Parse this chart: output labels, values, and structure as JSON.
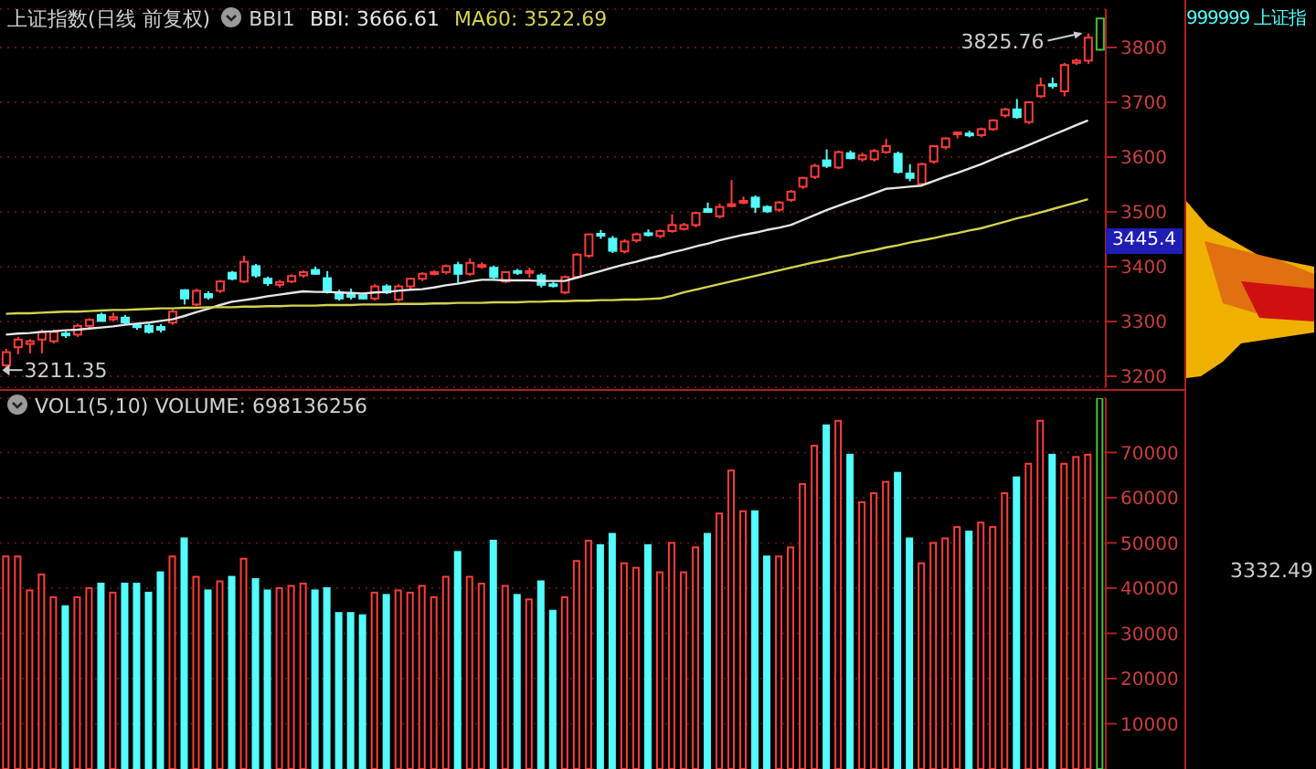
{
  "chart_data": [
    {
      "type": "candlestick",
      "title": "上证指数(日线 前复权)",
      "subtitle": "BBI1",
      "legend": "top left",
      "grid": "y",
      "categories": [
        null,
        null,
        null,
        null,
        null,
        null,
        null,
        null,
        null,
        null,
        null,
        null,
        null,
        null,
        null,
        null,
        null,
        null,
        null,
        null,
        null,
        null,
        null,
        null,
        null,
        null,
        null,
        null,
        null,
        null,
        null,
        null,
        null,
        null,
        null,
        null,
        null,
        null,
        null,
        null,
        null,
        null,
        null,
        null,
        null,
        null,
        null,
        null,
        null,
        null,
        null,
        null,
        null,
        null,
        null,
        null,
        null,
        null,
        null,
        null,
        null,
        null,
        null,
        null,
        null,
        null,
        null,
        null,
        null,
        null,
        null,
        null,
        null,
        null,
        null,
        null,
        null,
        null,
        null,
        null,
        null,
        null,
        null,
        null,
        null,
        null,
        null,
        null,
        null,
        null,
        null,
        null,
        null
      ],
      "ohlc": [
        [
          3220,
          3250,
          3211.35,
          3244
        ],
        [
          3253,
          3272,
          3240,
          3267
        ],
        [
          3259,
          3268,
          3242,
          3264
        ],
        [
          3267,
          3285,
          3242,
          3281
        ],
        [
          3264,
          3285,
          3260,
          3281
        ],
        [
          3278,
          3282,
          3270,
          3275
        ],
        [
          3276,
          3296,
          3272,
          3292
        ],
        [
          3292,
          3306,
          3288,
          3303
        ],
        [
          3312,
          3316,
          3300,
          3301
        ],
        [
          3304,
          3316,
          3300,
          3308
        ],
        [
          3307,
          3312,
          3294,
          3298
        ],
        [
          3293,
          3296,
          3285,
          3290
        ],
        [
          3292,
          3296,
          3278,
          3281
        ],
        [
          3290,
          3295,
          3280,
          3285
        ],
        [
          3298,
          3322,
          3294,
          3318
        ],
        [
          3357,
          3359,
          3331,
          3342
        ],
        [
          3331,
          3360,
          3328,
          3356
        ],
        [
          3350,
          3355,
          3340,
          3344
        ],
        [
          3356,
          3376,
          3352,
          3373
        ],
        [
          3389,
          3392,
          3375,
          3378
        ],
        [
          3373,
          3420,
          3370,
          3409
        ],
        [
          3401,
          3405,
          3380,
          3384
        ],
        [
          3378,
          3382,
          3365,
          3370
        ],
        [
          3367,
          3376,
          3362,
          3372
        ],
        [
          3373,
          3386,
          3370,
          3383
        ],
        [
          3384,
          3393,
          3380,
          3390
        ],
        [
          3394,
          3400,
          3385,
          3387
        ],
        [
          3379,
          3392,
          3351,
          3354
        ],
        [
          3353,
          3358,
          3338,
          3342
        ],
        [
          3351,
          3360,
          3340,
          3345
        ],
        [
          3348,
          3352,
          3340,
          3342
        ],
        [
          3342,
          3368,
          3338,
          3364
        ],
        [
          3364,
          3368,
          3350,
          3353
        ],
        [
          3340,
          3368,
          3336,
          3364
        ],
        [
          3364,
          3380,
          3360,
          3378
        ],
        [
          3378,
          3390,
          3374,
          3387
        ],
        [
          3388,
          3394,
          3384,
          3390
        ],
        [
          3390,
          3404,
          3386,
          3401
        ],
        [
          3403,
          3409,
          3370,
          3387
        ],
        [
          3387,
          3415,
          3383,
          3407
        ],
        [
          3400,
          3408,
          3396,
          3403
        ],
        [
          3398,
          3402,
          3378,
          3381
        ],
        [
          3373,
          3392,
          3370,
          3390
        ],
        [
          3392,
          3396,
          3385,
          3390
        ],
        [
          3389,
          3398,
          3380,
          3392
        ],
        [
          3384,
          3388,
          3362,
          3367
        ],
        [
          3368,
          3372,
          3362,
          3366
        ],
        [
          3353,
          3384,
          3350,
          3381
        ],
        [
          3381,
          3425,
          3378,
          3422
        ],
        [
          3420,
          3460,
          3416,
          3459
        ],
        [
          3460,
          3467,
          3451,
          3458
        ],
        [
          3451,
          3456,
          3425,
          3429
        ],
        [
          3428,
          3450,
          3424,
          3446
        ],
        [
          3448,
          3462,
          3444,
          3459
        ],
        [
          3461,
          3468,
          3455,
          3460
        ],
        [
          3456,
          3468,
          3452,
          3465
        ],
        [
          3465,
          3496,
          3462,
          3476
        ],
        [
          3469,
          3480,
          3466,
          3476
        ],
        [
          3476,
          3500,
          3472,
          3498
        ],
        [
          3505,
          3517,
          3498,
          3500
        ],
        [
          3492,
          3515,
          3488,
          3509
        ],
        [
          3512,
          3558,
          3508,
          3514
        ],
        [
          3518,
          3528,
          3514,
          3520
        ],
        [
          3526,
          3530,
          3498,
          3509
        ],
        [
          3509,
          3512,
          3498,
          3501
        ],
        [
          3504,
          3520,
          3500,
          3517
        ],
        [
          3522,
          3540,
          3518,
          3537
        ],
        [
          3546,
          3564,
          3542,
          3562
        ],
        [
          3564,
          3588,
          3560,
          3584
        ],
        [
          3594,
          3614,
          3580,
          3584
        ],
        [
          3581,
          3612,
          3578,
          3609
        ],
        [
          3607,
          3612,
          3596,
          3598
        ],
        [
          3596,
          3608,
          3592,
          3603
        ],
        [
          3596,
          3615,
          3592,
          3611
        ],
        [
          3609,
          3633,
          3606,
          3620
        ],
        [
          3606,
          3610,
          3570,
          3573
        ],
        [
          3570,
          3587,
          3556,
          3562
        ],
        [
          3551,
          3590,
          3548,
          3587
        ],
        [
          3592,
          3622,
          3588,
          3620
        ],
        [
          3618,
          3636,
          3614,
          3634
        ],
        [
          3643,
          3646,
          3634,
          3645
        ],
        [
          3643,
          3648,
          3636,
          3640
        ],
        [
          3640,
          3654,
          3636,
          3651
        ],
        [
          3651,
          3669,
          3648,
          3667
        ],
        [
          3676,
          3690,
          3672,
          3687
        ],
        [
          3687,
          3706,
          3670,
          3673
        ],
        [
          3664,
          3702,
          3660,
          3700
        ],
        [
          3711,
          3745,
          3708,
          3731
        ],
        [
          3733,
          3745,
          3725,
          3730
        ],
        [
          3720,
          3772,
          3711,
          3768
        ],
        [
          3772,
          3780,
          3768,
          3776
        ],
        [
          3776,
          3825.76,
          3770,
          3818
        ],
        [
          3796,
          3853,
          3794,
          3853
        ]
      ],
      "colors": [
        "#ff3c3c",
        "#ff3c3c",
        "#ff3c3c",
        "#ff3c3c",
        "#ff3c3c",
        "#54fcfc",
        "#ff3c3c",
        "#ff3c3c",
        "#54fcfc",
        "#ff3c3c",
        "#54fcfc",
        "#54fcfc",
        "#54fcfc",
        "#54fcfc",
        "#ff3c3c",
        "#54fcfc",
        "#ff3c3c",
        "#54fcfc",
        "#ff3c3c",
        "#54fcfc",
        "#ff3c3c",
        "#54fcfc",
        "#54fcfc",
        "#ff3c3c",
        "#ff3c3c",
        "#ff3c3c",
        "#54fcfc",
        "#54fcfc",
        "#54fcfc",
        "#54fcfc",
        "#54fcfc",
        "#ff3c3c",
        "#54fcfc",
        "#ff3c3c",
        "#ff3c3c",
        "#ff3c3c",
        "#ff3c3c",
        "#ff3c3c",
        "#54fcfc",
        "#ff3c3c",
        "#ff3c3c",
        "#54fcfc",
        "#ff3c3c",
        "#54fcfc",
        "#ff3c3c",
        "#54fcfc",
        "#54fcfc",
        "#ff3c3c",
        "#ff3c3c",
        "#ff3c3c",
        "#54fcfc",
        "#54fcfc",
        "#ff3c3c",
        "#ff3c3c",
        "#54fcfc",
        "#ff3c3c",
        "#ff3c3c",
        "#ff3c3c",
        "#ff3c3c",
        "#54fcfc",
        "#ff3c3c",
        "#ff3c3c",
        "#ff3c3c",
        "#54fcfc",
        "#54fcfc",
        "#ff3c3c",
        "#ff3c3c",
        "#ff3c3c",
        "#ff3c3c",
        "#54fcfc",
        "#ff3c3c",
        "#54fcfc",
        "#ff3c3c",
        "#ff3c3c",
        "#ff3c3c",
        "#54fcfc",
        "#54fcfc",
        "#ff3c3c",
        "#ff3c3c",
        "#ff3c3c",
        "#ff3c3c",
        "#54fcfc",
        "#ff3c3c",
        "#ff3c3c",
        "#ff3c3c",
        "#54fcfc",
        "#ff3c3c",
        "#ff3c3c",
        "#54fcfc",
        "#ff3c3c",
        "#ff3c3c",
        "#ff3c3c",
        "#40c040"
      ],
      "series": [
        {
          "name": "BBI: 3666.61",
          "type": "line",
          "color": "#e6e6e6",
          "values": [
            3276,
            3278,
            3279,
            3281,
            3282,
            3284,
            3285,
            3287,
            3289,
            3291,
            3294,
            3296,
            3298,
            3301,
            3304,
            3310,
            3317,
            3323,
            3330,
            3336,
            3339,
            3342,
            3346,
            3349,
            3352,
            3355,
            3354,
            3354,
            3353,
            3352,
            3351,
            3353,
            3354,
            3356,
            3358,
            3359,
            3362,
            3366,
            3369,
            3373,
            3376,
            3376,
            3375,
            3375,
            3375,
            3374,
            3374,
            3374,
            3380,
            3386,
            3392,
            3398,
            3404,
            3409,
            3415,
            3420,
            3426,
            3431,
            3437,
            3442,
            3448,
            3453,
            3458,
            3462,
            3467,
            3471,
            3476,
            3485,
            3494,
            3503,
            3511,
            3519,
            3526,
            3534,
            3542,
            3544,
            3546,
            3548,
            3556,
            3564,
            3571,
            3579,
            3587,
            3596,
            3605,
            3613,
            3622,
            3631,
            3640,
            3649,
            3658,
            3667,
            null
          ]
        },
        {
          "name": "MA60: 3522.69",
          "type": "line",
          "color": "#d2d250",
          "values": [
            3314,
            3315,
            3315,
            3316,
            3317,
            3318,
            3318,
            3319,
            3320,
            3321,
            3321,
            3322,
            3323,
            3324,
            3324,
            3325,
            3325,
            3326,
            3326,
            3326,
            3327,
            3327,
            3328,
            3328,
            3329,
            3329,
            3329,
            3330,
            3330,
            3330,
            3331,
            3331,
            3331,
            3332,
            3332,
            3332,
            3333,
            3333,
            3334,
            3334,
            3334,
            3335,
            3335,
            3335,
            3336,
            3336,
            3337,
            3337,
            3338,
            3338,
            3339,
            3339,
            3340,
            3340,
            3341,
            3342,
            3347,
            3353,
            3358,
            3363,
            3368,
            3373,
            3378,
            3383,
            3388,
            3393,
            3398,
            3403,
            3408,
            3412,
            3417,
            3421,
            3426,
            3430,
            3435,
            3439,
            3444,
            3448,
            3452,
            3457,
            3461,
            3466,
            3470,
            3476,
            3482,
            3488,
            3493,
            3499,
            3505,
            3511,
            3517,
            3523,
            null
          ]
        }
      ],
      "ylim": [
        3180,
        3870
      ],
      "yticks": [
        3200,
        3300,
        3400,
        3500,
        3600,
        3700,
        3800
      ],
      "annotations": [
        "3825.76",
        "3211.35",
        {
          "text": "3445.4",
          "y": 3445.4
        }
      ]
    },
    {
      "type": "bar",
      "title": "VOL1(5,10) VOLUME: 698136256",
      "grid": "y",
      "categories": [
        null,
        null,
        null,
        null,
        null,
        null,
        null,
        null,
        null,
        null,
        null,
        null,
        null,
        null,
        null,
        null,
        null,
        null,
        null,
        null,
        null,
        null,
        null,
        null,
        null,
        null,
        null,
        null,
        null,
        null,
        null,
        null,
        null,
        null,
        null,
        null,
        null,
        null,
        null,
        null,
        null,
        null,
        null,
        null,
        null,
        null,
        null,
        null,
        null,
        null,
        null,
        null,
        null,
        null,
        null,
        null,
        null,
        null,
        null,
        null,
        null,
        null,
        null,
        null,
        null,
        null,
        null,
        null,
        null,
        null,
        null,
        null,
        null,
        null,
        null,
        null,
        null,
        null,
        null,
        null,
        null,
        null,
        null,
        null,
        null,
        null,
        null,
        null,
        null,
        null,
        null,
        null,
        null
      ],
      "values": [
        47000,
        47000,
        39500,
        43000,
        38000,
        36000,
        38000,
        40000,
        41000,
        39000,
        41000,
        41000,
        39000,
        43500,
        47000,
        51000,
        42500,
        39500,
        41500,
        42500,
        46500,
        42000,
        39500,
        40000,
        40500,
        41000,
        39500,
        40000,
        34500,
        34500,
        34000,
        39000,
        38500,
        39500,
        39000,
        40500,
        38000,
        42500,
        48000,
        42500,
        41000,
        50500,
        40500,
        38500,
        37500,
        41500,
        35000,
        38000,
        46000,
        50500,
        49500,
        52000,
        45500,
        44500,
        49500,
        43500,
        50000,
        43500,
        49000,
        52000,
        56500,
        66000,
        57000,
        57000,
        47000,
        47000,
        49000,
        63000,
        71500,
        76000,
        77000,
        69500,
        59000,
        61000,
        63500,
        65500,
        51000,
        45500,
        50000,
        51000,
        53500,
        52500,
        54500,
        53500,
        61000,
        64500,
        67500,
        77000,
        69500,
        67500,
        69000,
        69500,
        82000
      ],
      "colors": [
        "#ff3c3c",
        "#ff3c3c",
        "#ff3c3c",
        "#ff3c3c",
        "#ff3c3c",
        "#54fcfc",
        "#ff3c3c",
        "#ff3c3c",
        "#54fcfc",
        "#ff3c3c",
        "#54fcfc",
        "#54fcfc",
        "#54fcfc",
        "#54fcfc",
        "#ff3c3c",
        "#54fcfc",
        "#ff3c3c",
        "#54fcfc",
        "#ff3c3c",
        "#54fcfc",
        "#ff3c3c",
        "#54fcfc",
        "#54fcfc",
        "#ff3c3c",
        "#ff3c3c",
        "#ff3c3c",
        "#54fcfc",
        "#54fcfc",
        "#54fcfc",
        "#54fcfc",
        "#54fcfc",
        "#ff3c3c",
        "#54fcfc",
        "#ff3c3c",
        "#ff3c3c",
        "#ff3c3c",
        "#ff3c3c",
        "#ff3c3c",
        "#54fcfc",
        "#ff3c3c",
        "#ff3c3c",
        "#54fcfc",
        "#ff3c3c",
        "#54fcfc",
        "#ff3c3c",
        "#54fcfc",
        "#54fcfc",
        "#ff3c3c",
        "#ff3c3c",
        "#ff3c3c",
        "#54fcfc",
        "#54fcfc",
        "#ff3c3c",
        "#ff3c3c",
        "#54fcfc",
        "#ff3c3c",
        "#ff3c3c",
        "#ff3c3c",
        "#ff3c3c",
        "#54fcfc",
        "#ff3c3c",
        "#ff3c3c",
        "#ff3c3c",
        "#54fcfc",
        "#54fcfc",
        "#ff3c3c",
        "#ff3c3c",
        "#ff3c3c",
        "#ff3c3c",
        "#54fcfc",
        "#ff3c3c",
        "#54fcfc",
        "#ff3c3c",
        "#ff3c3c",
        "#ff3c3c",
        "#54fcfc",
        "#54fcfc",
        "#ff3c3c",
        "#ff3c3c",
        "#ff3c3c",
        "#ff3c3c",
        "#54fcfc",
        "#ff3c3c",
        "#ff3c3c",
        "#ff3c3c",
        "#54fcfc",
        "#ff3c3c",
        "#ff3c3c",
        "#54fcfc",
        "#ff3c3c",
        "#ff3c3c",
        "#ff3c3c",
        "#40c040"
      ],
      "ylim": [
        0,
        82000
      ],
      "yticks": [
        10000,
        20000,
        30000,
        40000,
        50000,
        60000,
        70000
      ]
    },
    {
      "type": "other",
      "title": "999999 上证指",
      "annotations": [
        "3332.49"
      ]
    }
  ]
}
